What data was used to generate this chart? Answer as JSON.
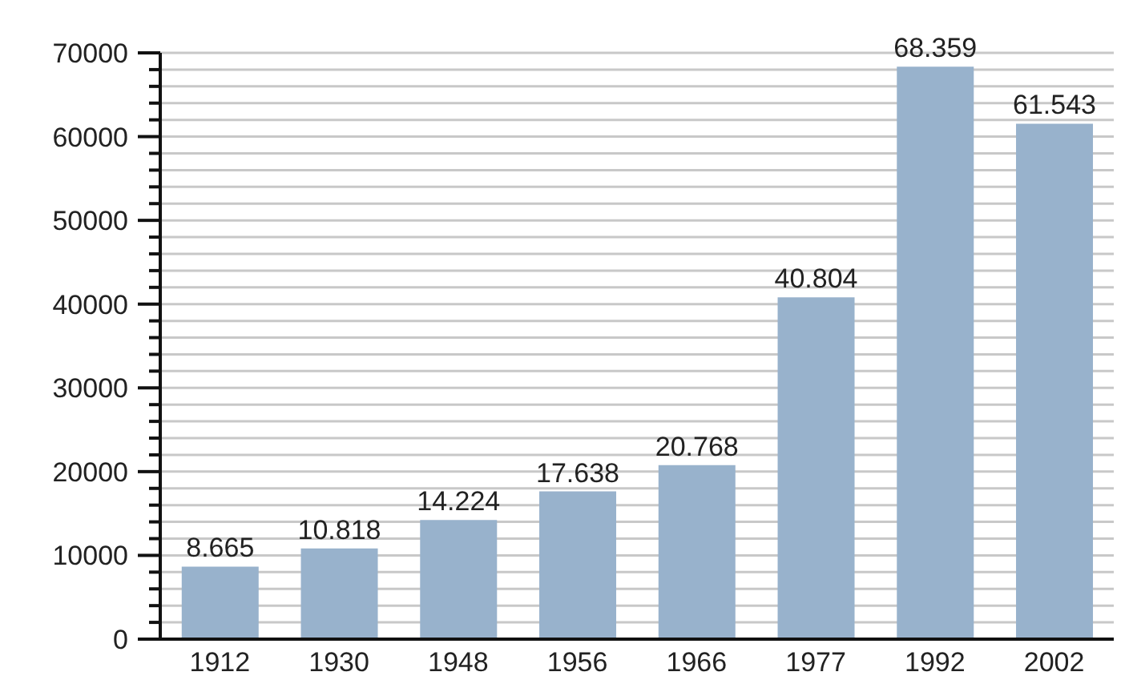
{
  "chart_data": {
    "type": "bar",
    "categories": [
      "1912",
      "1930",
      "1948",
      "1956",
      "1966",
      "1977",
      "1992",
      "2002"
    ],
    "values": [
      8665,
      10818,
      14224,
      17638,
      20768,
      40804,
      68359,
      61543
    ],
    "value_labels": [
      "8.665",
      "10.818",
      "14.224",
      "17.638",
      "20.768",
      "40.804",
      "68.359",
      "61.543"
    ],
    "color": "#98b2cc",
    "ylim": [
      0,
      70000
    ],
    "yticks": [
      0,
      {
        "value": 2000,
        "label": null
      },
      {
        "value": 4000,
        "label": null
      },
      {
        "value": 6000,
        "label": null
      },
      {
        "value": 8000,
        "label": null
      },
      10000,
      {
        "value": 12000,
        "label": null
      },
      {
        "value": 14000,
        "label": null
      },
      {
        "value": 16000,
        "label": null
      },
      {
        "value": 18000,
        "label": null
      },
      20000,
      {
        "value": 22000,
        "label": null
      },
      {
        "value": 24000,
        "label": null
      },
      {
        "value": 26000,
        "label": null
      },
      {
        "value": 28000,
        "label": null
      },
      30000,
      {
        "value": 32000,
        "label": null
      },
      {
        "value": 34000,
        "label": null
      },
      {
        "value": 36000,
        "label": null
      },
      {
        "value": 38000,
        "label": null
      },
      40000,
      {
        "value": 42000,
        "label": null
      },
      {
        "value": 44000,
        "label": null
      },
      {
        "value": 46000,
        "label": null
      },
      {
        "value": 48000,
        "label": null
      },
      50000,
      {
        "value": 52000,
        "label": null
      },
      {
        "value": 54000,
        "label": null
      },
      {
        "value": 56000,
        "label": null
      },
      {
        "value": 58000,
        "label": null
      },
      60000,
      {
        "value": 62000,
        "label": null
      },
      {
        "value": 64000,
        "label": null
      },
      {
        "value": 66000,
        "label": null
      },
      {
        "value": 68000,
        "label": null
      },
      70000
    ],
    "grid": "y"
  }
}
